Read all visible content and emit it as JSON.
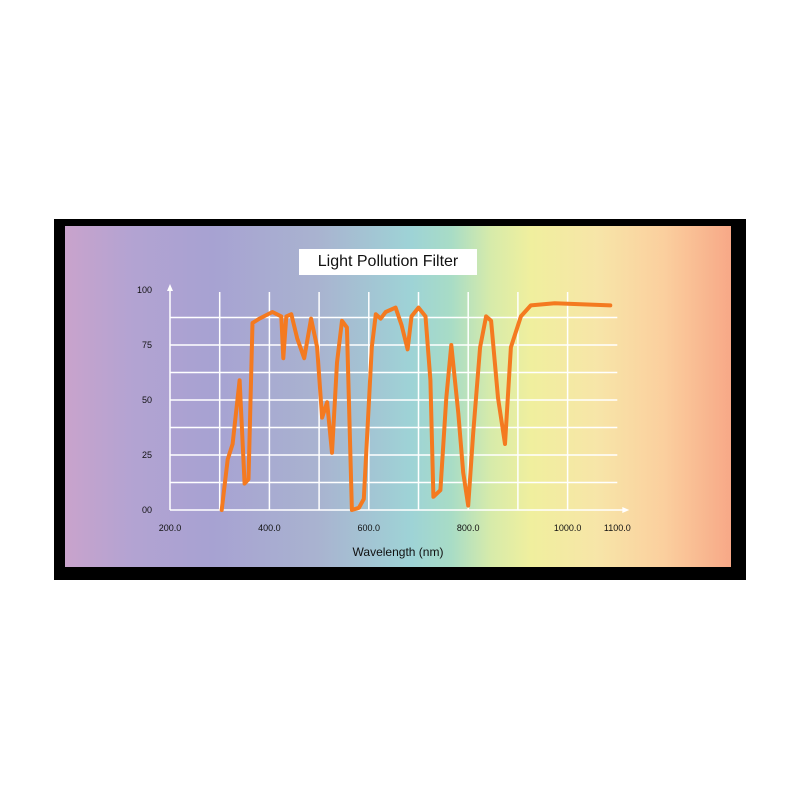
{
  "chart_data": {
    "type": "line",
    "title": "Light Pollution Filter",
    "xlabel": "Wavelength (nm)",
    "ylabel": "",
    "xlim": [
      200,
      1100
    ],
    "ylim": [
      0,
      100
    ],
    "x_ticks": [
      "200.0",
      "400.0",
      "600.0",
      "800.0",
      "1000.0",
      "1100.0"
    ],
    "x_tick_values": [
      200,
      400,
      600,
      800,
      1000,
      1100
    ],
    "y_ticks": [
      "00",
      "25",
      "50",
      "75",
      "100"
    ],
    "y_tick_values": [
      0,
      25,
      50,
      75,
      100
    ],
    "grid": true,
    "line_color": "#f47a20",
    "series": [
      {
        "x": [
          304,
          316,
          326,
          340,
          350,
          358,
          366,
          380,
          406,
          424,
          428,
          434,
          444,
          456,
          470,
          484,
          496,
          506,
          516,
          526,
          536,
          546,
          556,
          566,
          580,
          590,
          606,
          614,
          624,
          634,
          654,
          666,
          678,
          686,
          700,
          714,
          724,
          730,
          744,
          756,
          766,
          780,
          790,
          800,
          810,
          824,
          836,
          846,
          860,
          874,
          886,
          906,
          926,
          974,
          1086
        ],
        "y": [
          0,
          23,
          30,
          59,
          12,
          14,
          85,
          87,
          90,
          88,
          69,
          88,
          89,
          78,
          69,
          87,
          74,
          42,
          49,
          26,
          67,
          86,
          83,
          0,
          1,
          5,
          74,
          89,
          87,
          90,
          92,
          84,
          73,
          88,
          92,
          88,
          59,
          6,
          9,
          51,
          75,
          44,
          17,
          2,
          35,
          74,
          88,
          86,
          51,
          30,
          74,
          88,
          93,
          94,
          93
        ]
      }
    ]
  }
}
